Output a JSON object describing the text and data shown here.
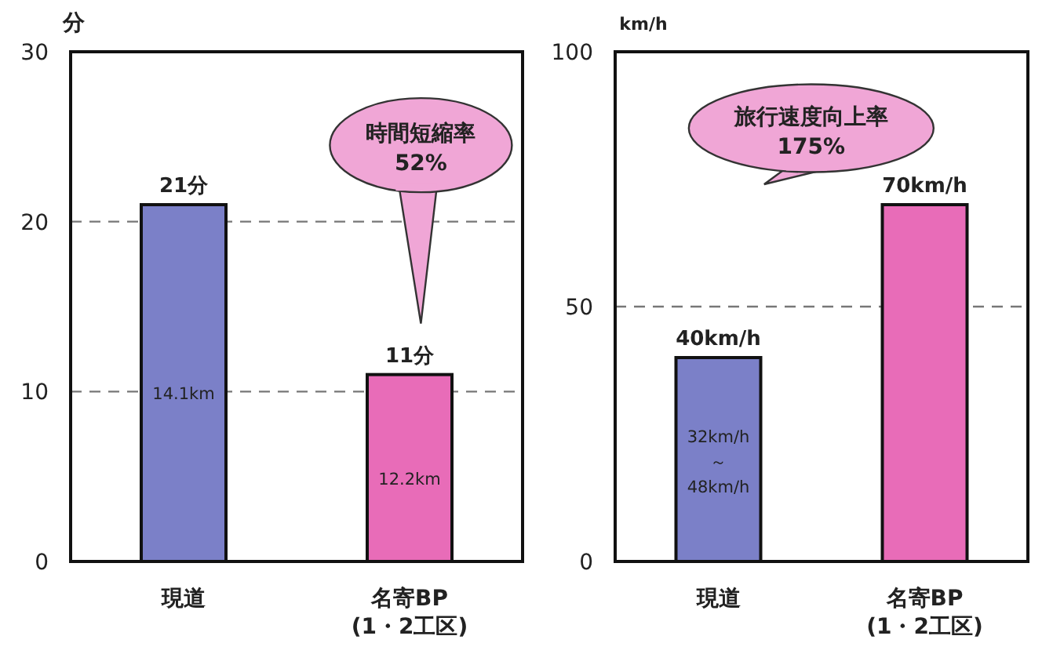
{
  "chart_data": [
    {
      "type": "bar",
      "ylabel": "分",
      "categories": [
        "現道",
        "名寄BP\n(1・2工区)"
      ],
      "values": [
        21,
        11
      ],
      "colors": [
        "#7b80c8",
        "#e86cb8"
      ],
      "value_labels": [
        "21分",
        "11分"
      ],
      "ylim": [
        0,
        30
      ],
      "yticks": [
        0,
        10,
        20,
        30
      ],
      "grid": "y",
      "annotations": [
        "時間短縮率\n52%",
        "14.1km",
        "12.2km"
      ]
    },
    {
      "type": "bar",
      "ylabel": "km/h",
      "categories": [
        "現道",
        "名寄BP\n(1・2工区)"
      ],
      "values": [
        40,
        70
      ],
      "colors": [
        "#7b80c8",
        "#e86cb8"
      ],
      "value_labels": [
        "40km/h",
        "70km/h"
      ],
      "ylim": [
        0,
        100
      ],
      "yticks": [
        0,
        50,
        100
      ],
      "grid": "y",
      "annotations": [
        "旅行速度向上率\n175%",
        "32km/h\n～\n48km/h"
      ]
    }
  ]
}
